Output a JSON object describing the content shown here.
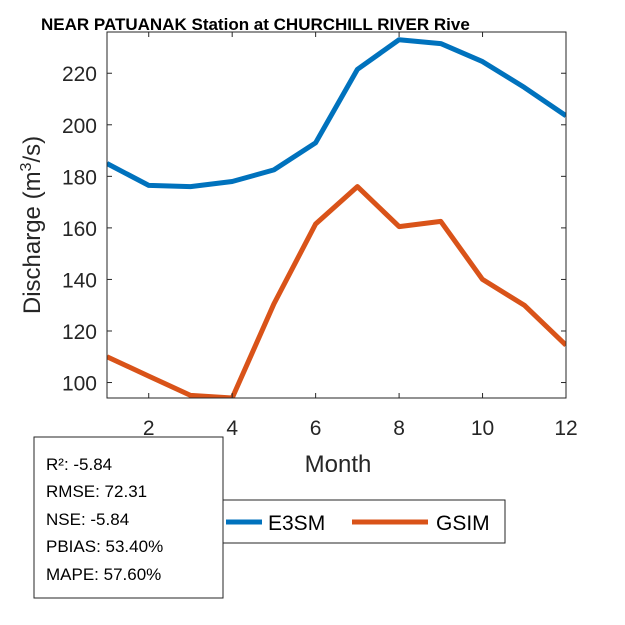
{
  "chart_data": {
    "type": "line",
    "title": "NEAR PATUANAK  Station at  CHURCHILL RIVER  Rive",
    "xlabel": "Month",
    "ylabel": "Discharge (m³/s)",
    "ylabel_base": "Discharge (m",
    "ylabel_sup": "3",
    "ylabel_tail": "/s)",
    "x": [
      1,
      2,
      3,
      4,
      5,
      6,
      7,
      8,
      9,
      10,
      11,
      12
    ],
    "xlim": [
      1,
      12
    ],
    "ylim": [
      94,
      236
    ],
    "xticks": [
      2,
      4,
      6,
      8,
      10,
      12
    ],
    "yticks": [
      100,
      120,
      140,
      160,
      180,
      200,
      220
    ],
    "grid": false,
    "series": [
      {
        "name": "E3SM",
        "color": "#0072BD",
        "values": [
          185,
          176.5,
          176,
          178,
          182.5,
          193,
          221.5,
          233,
          231.5,
          224.5,
          214.5,
          203.5
        ]
      },
      {
        "name": "GSIM",
        "color": "#D95319",
        "values": [
          110,
          102.5,
          95,
          94,
          130.5,
          161.5,
          176,
          160.5,
          162.5,
          140,
          130,
          114.5
        ]
      }
    ],
    "legend_position": "bottom"
  },
  "stats": [
    "R²: -5.84",
    "RMSE: 72.31",
    "NSE: -5.84",
    "PBIAS: 53.40%",
    "MAPE: 57.60%"
  ]
}
